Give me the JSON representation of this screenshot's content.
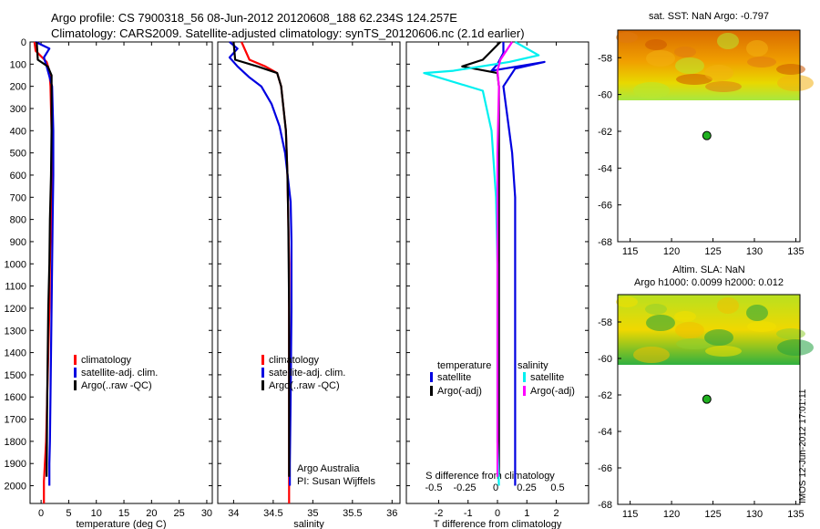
{
  "header": {
    "line1": "Argo profile: CS 7900318_56 08-Jun-2012 20120608_188 62.234S 124.257E",
    "line2": "Climatology: CARS2009. Satellite-adjusted climatology: synTS_20120606.nc (2.1d earlier)"
  },
  "colors": {
    "climatology": "#ff0000",
    "satellite": "#0000e0",
    "argo": "#000000",
    "sat_salinity": "#00f0f0",
    "argo_salinity": "#ff00ff"
  },
  "chart_data": [
    {
      "type": "line",
      "panel": "temperature",
      "xlabel": "temperature (deg C)",
      "xticks": [
        0,
        5,
        10,
        15,
        20,
        25,
        30
      ],
      "xlim": [
        -2,
        31
      ],
      "ylim": [
        0,
        2080
      ],
      "yticks": [
        0,
        100,
        200,
        300,
        400,
        500,
        600,
        700,
        800,
        900,
        1000,
        1100,
        1200,
        1300,
        1400,
        1500,
        1600,
        1700,
        1800,
        1900,
        2000
      ],
      "legend": [
        "climatology",
        "satellite-adj. clim.",
        "Argo(..raw -QC)"
      ],
      "series": [
        {
          "name": "climatology",
          "color": "climatology",
          "x": [
            -1.2,
            -1.0,
            1.0,
            1.5,
            1.7,
            1.9,
            1.9,
            1.8,
            1.6,
            1.5,
            1.3,
            1.1,
            0.9,
            0.5,
            0.5
          ],
          "y": [
            0,
            40,
            90,
            130,
            200,
            400,
            600,
            800,
            1000,
            1200,
            1400,
            1600,
            1800,
            1980,
            2080
          ]
        },
        {
          "name": "satellite-adj. clim.",
          "color": "satellite",
          "x": [
            -1.0,
            1.5,
            0.5,
            1.0,
            2.0,
            2.2,
            2.2,
            2.1,
            2.0,
            1.9,
            1.8,
            1.7,
            1.6,
            1.5,
            1.5
          ],
          "y": [
            0,
            30,
            70,
            110,
            200,
            400,
            600,
            800,
            1000,
            1200,
            1400,
            1600,
            1800,
            1900,
            2000
          ]
        },
        {
          "name": "Argo(..raw -QC)",
          "color": "argo",
          "x": [
            -0.8,
            -0.6,
            1.2,
            1.9,
            1.9,
            1.8,
            1.6,
            1.5,
            1.3,
            1.2,
            1.1,
            1.0
          ],
          "y": [
            0,
            80,
            110,
            150,
            400,
            600,
            800,
            1000,
            1200,
            1400,
            1600,
            1960
          ]
        }
      ]
    },
    {
      "type": "line",
      "panel": "salinity",
      "xlabel": "salinity",
      "xticks": [
        34,
        34.5,
        35,
        35.5,
        36
      ],
      "xlim": [
        33.8,
        36.1
      ],
      "ylim": [
        0,
        2080
      ],
      "legend": [
        "climatology",
        "satellite-adj. clim.",
        "Argo(..raw -QC)"
      ],
      "annotation": [
        "Argo Australia",
        "PI: Susan Wijffels"
      ],
      "series": [
        {
          "name": "climatology",
          "color": "climatology",
          "x": [
            34.1,
            34.2,
            34.4,
            34.55,
            34.6,
            34.63,
            34.66,
            34.68,
            34.69,
            34.7,
            34.7,
            34.7,
            34.7,
            34.7
          ],
          "y": [
            0,
            80,
            110,
            140,
            200,
            300,
            400,
            600,
            800,
            1000,
            1400,
            1800,
            1960,
            2080
          ]
        },
        {
          "name": "satellite-adj. clim.",
          "color": "satellite",
          "x": [
            33.95,
            34.05,
            33.95,
            34.05,
            34.2,
            34.35,
            34.48,
            34.58,
            34.65,
            34.72,
            34.73,
            34.73,
            34.72,
            34.71,
            34.71
          ],
          "y": [
            0,
            30,
            70,
            110,
            160,
            200,
            280,
            380,
            500,
            720,
            900,
            1200,
            1600,
            1900,
            2000
          ]
        },
        {
          "name": "Argo(..raw -QC)",
          "color": "argo",
          "x": [
            34.0,
            34.02,
            34.3,
            34.55,
            34.6,
            34.63,
            34.66,
            34.68,
            34.69,
            34.7,
            34.7,
            34.7
          ],
          "y": [
            0,
            80,
            110,
            140,
            200,
            300,
            400,
            600,
            800,
            1200,
            1600,
            1960
          ]
        }
      ]
    },
    {
      "type": "line",
      "panel": "difference",
      "xlabel": "T difference from climatology",
      "xlabel2": "S difference from climatology",
      "xticks": [
        -2,
        -1,
        0,
        1,
        2
      ],
      "xticks2": [
        "-0.5",
        "-0.25",
        "0",
        "0.25",
        "0.5"
      ],
      "xlim": [
        -3.1,
        3.1
      ],
      "ylim": [
        0,
        2080
      ],
      "legend_left_title": "temperature",
      "legend_right_title": "salinity",
      "legend": [
        "satellite",
        "Argo(-adj)",
        "satellite",
        "Argo(-adj)"
      ],
      "series": [
        {
          "name": "temperature satellite",
          "color": "satellite",
          "x": [
            0.2,
            0.2,
            0.0,
            -0.2,
            1.6,
            0.6,
            0.2,
            0.3,
            0.5,
            0.6,
            0.6,
            0.6,
            0.6,
            0.6,
            0.6
          ],
          "y": [
            0,
            50,
            100,
            130,
            90,
            120,
            200,
            300,
            500,
            700,
            900,
            1200,
            1500,
            1800,
            2000
          ]
        },
        {
          "name": "temperature Argo(-adj)",
          "color": "argo",
          "x": [
            0.1,
            -0.5,
            -1.2,
            0.0,
            0.05,
            0.05,
            0.05,
            0.05
          ],
          "y": [
            0,
            80,
            110,
            140,
            200,
            500,
            1000,
            1960
          ]
        },
        {
          "name": "salinity satellite",
          "color": "sat_salinity",
          "x": [
            0.6,
            1.4,
            0.4,
            -1.5,
            -2.5,
            -0.5,
            -0.2,
            -0.05,
            0.0,
            0.0,
            0.0,
            0.05
          ],
          "y": [
            0,
            60,
            90,
            130,
            140,
            220,
            400,
            700,
            1000,
            1400,
            1800,
            2000
          ]
        },
        {
          "name": "salinity Argo(-adj)",
          "color": "argo_salinity",
          "x": [
            0.5,
            0.1,
            0.0,
            0.05,
            0.0,
            0.0,
            0.0,
            0.0
          ],
          "y": [
            0,
            80,
            130,
            200,
            500,
            1000,
            1500,
            1960
          ]
        }
      ]
    }
  ],
  "maps": [
    {
      "title": "sat. SST: NaN Argo: -0.797",
      "yticks": [
        "-58",
        "-60",
        "-62",
        "-64",
        "-66",
        "-68"
      ],
      "xticks": [
        "115",
        "120",
        "125",
        "130",
        "135"
      ],
      "marker": {
        "lon": 124.257,
        "lat": -62.234
      }
    },
    {
      "title_line1": "Altim. SLA: NaN",
      "title_line2": "Argo h1000: 0.0099 h2000: 0.012",
      "yticks": [
        "-58",
        "-60",
        "-62",
        "-64",
        "-66",
        "-68"
      ],
      "xticks": [
        "115",
        "120",
        "125",
        "130",
        "135"
      ],
      "marker": {
        "lon": 124.257,
        "lat": -62.234
      }
    }
  ],
  "credit": "IMOS 12-Jun-2012 17:01:11"
}
